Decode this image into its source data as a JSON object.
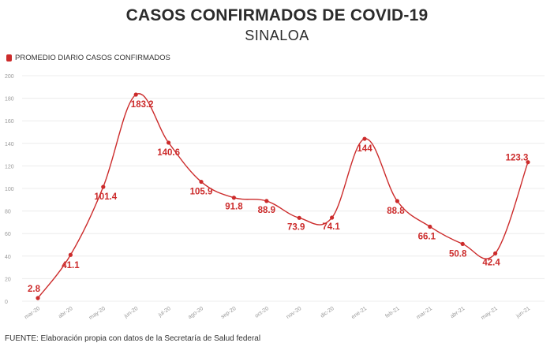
{
  "chart_data": {
    "type": "line",
    "title": "CASOS CONFIRMADOS DE COVID-19",
    "subtitle": "SINALOA",
    "source": "FUENTE: Elaboración propia con datos de la Secretaría de Salud federal",
    "xlabel": "",
    "ylabel": "",
    "ylim": [
      0,
      200
    ],
    "yticks": [
      0,
      20,
      40,
      60,
      80,
      100,
      120,
      140,
      160,
      180,
      200
    ],
    "grid": true,
    "legend_position": "top-left",
    "categories": [
      "mar-20",
      "abr-20",
      "may-20",
      "jun-20",
      "jul-20",
      "ago-20",
      "sep-20",
      "oct-20",
      "nov-20",
      "dic-20",
      "ene-21",
      "feb-21",
      "mar-21",
      "abr-21",
      "may-21",
      "jun-21"
    ],
    "series": [
      {
        "name": "PROMEDIO DIARIO CASOS CONFIRMADOS",
        "color": "#cc2b2b",
        "values": [
          2.8,
          41.1,
          101.4,
          183.2,
          140.6,
          105.9,
          91.8,
          88.9,
          73.9,
          74.1,
          144,
          88.8,
          66.1,
          50.8,
          42.4,
          123.3
        ],
        "labels": [
          "2.8",
          "41.1",
          "101.4",
          "183.2",
          "140.6",
          "105.9",
          "91.8",
          "88.9",
          "73.9",
          "74.1",
          "144",
          "88.8",
          "66.1",
          "50.8",
          "42.4",
          "123.3"
        ]
      }
    ]
  }
}
